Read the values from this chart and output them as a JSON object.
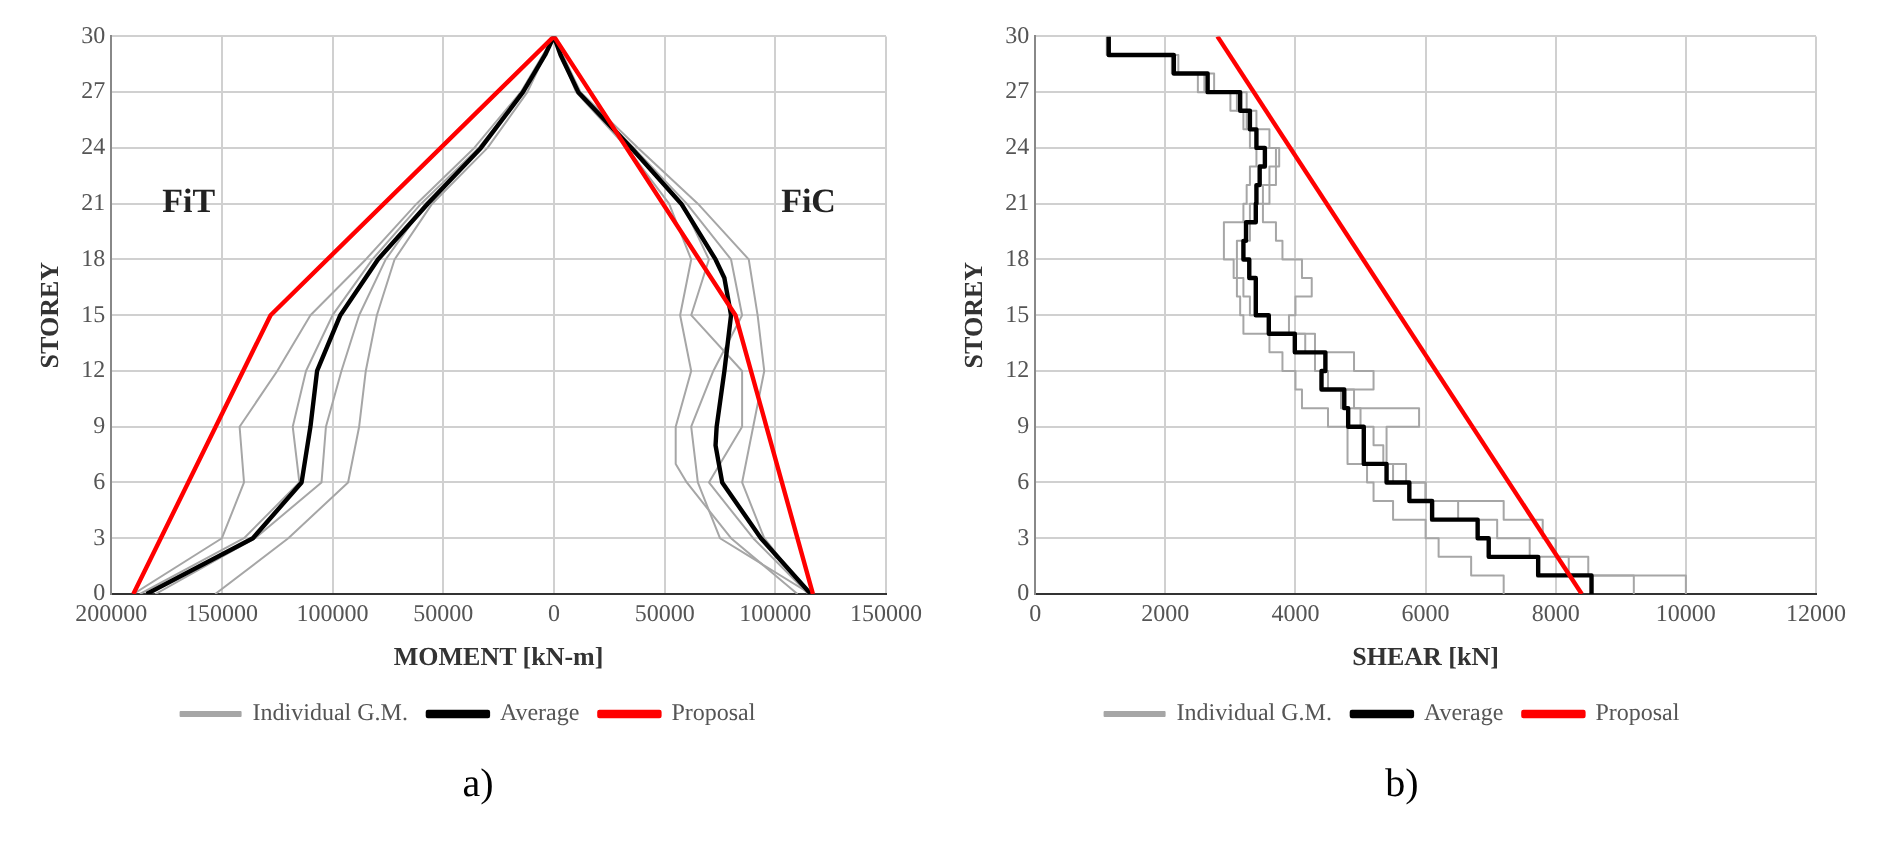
{
  "chart_data": [
    {
      "type": "line",
      "xlabel": "MOMENT [kN-m]",
      "ylabel": "STOREY",
      "xlim": [
        -200000,
        150000
      ],
      "xticks": [
        {
          "value": -200000,
          "label": "200000"
        },
        {
          "value": -150000,
          "label": "150000"
        },
        {
          "value": -100000,
          "label": "100000"
        },
        {
          "value": -50000,
          "label": "50000"
        },
        0,
        50000,
        100000,
        150000
      ],
      "ylim": [
        0,
        30
      ],
      "yticks": [
        0,
        3,
        6,
        9,
        12,
        15,
        18,
        21,
        24,
        27,
        30
      ],
      "grid": true,
      "legend": "bottom",
      "marker": "none",
      "line_style": "solid",
      "annotations": [
        "FiT",
        "FiC",
        "a)"
      ],
      "series": [
        {
          "name": "Individual G.M.",
          "color": "#a6a6a6",
          "x": [
            -190000,
            -150000,
            -140000,
            -142000,
            -125000,
            -110000,
            -85000,
            -62000,
            -36000,
            -15000,
            0,
            10000,
            33000,
            52000,
            62000,
            57000,
            62000,
            55000,
            55000,
            60000,
            80000,
            110000
          ],
          "values": [
            0,
            3,
            6,
            9,
            12,
            15,
            18,
            21,
            24,
            27,
            30,
            27,
            24,
            21,
            18,
            15,
            12,
            9,
            7,
            6,
            3,
            0
          ]
        },
        {
          "color": "#a6a6a6",
          "x": [
            -153000,
            -120000,
            -93000,
            -88000,
            -85000,
            -80000,
            -72000,
            -55000,
            -30000,
            -12000,
            0,
            12000,
            38000,
            65000,
            88000,
            92000,
            95000,
            90000,
            85000,
            95000,
            115000
          ],
          "values": [
            0,
            3,
            6,
            9,
            12,
            15,
            18,
            21,
            24,
            27,
            30,
            27,
            24,
            21,
            18,
            15,
            12,
            9,
            6,
            3,
            0
          ]
        },
        {
          "color": "#a6a6a6",
          "x": [
            -180000,
            -135000,
            -105000,
            -103000,
            -96000,
            -88000,
            -76000,
            -58000,
            -33000,
            -14000,
            0,
            11000,
            36000,
            60000,
            80000,
            85000,
            72000,
            62000,
            65000,
            75000,
            116000
          ],
          "values": [
            0,
            3,
            6,
            9,
            12,
            15,
            18,
            21,
            24,
            27,
            30,
            27,
            24,
            21,
            18,
            15,
            12,
            9,
            6,
            3,
            0
          ]
        },
        {
          "color": "#a6a6a6",
          "x": [
            -187000,
            -140000,
            -115000,
            -118000,
            -112000,
            -100000,
            -82000,
            -60000,
            -34000,
            -14000,
            0,
            11000,
            35000,
            58000,
            70000,
            62000,
            85000,
            85000,
            70000,
            90000,
            115000
          ],
          "values": [
            0,
            3,
            6,
            9,
            12,
            15,
            18,
            21,
            24,
            27,
            30,
            27,
            24,
            21,
            18,
            15,
            12,
            9,
            6,
            3,
            0
          ]
        },
        {
          "name": "Average",
          "color": "#000000",
          "x": [
            -184000,
            -136000,
            -114000,
            -110000,
            -107000,
            -96500,
            -79500,
            -57000,
            -33000,
            -14000,
            -4000,
            0,
            3000,
            11000,
            35000,
            57500,
            73000,
            77000,
            80000,
            77000,
            73500,
            73000,
            76000,
            93500,
            116000
          ],
          "values": [
            0,
            3,
            6,
            9,
            12,
            15,
            18,
            21,
            24,
            27,
            29,
            30,
            29,
            27,
            24,
            21,
            18,
            17,
            15,
            12,
            9,
            8,
            6,
            3,
            0
          ]
        },
        {
          "name": "Proposal",
          "color": "#ff0000",
          "x": [
            -190000,
            -128000,
            0,
            82000,
            117000
          ],
          "values": [
            0,
            15,
            30,
            15,
            0
          ]
        }
      ]
    },
    {
      "type": "step",
      "xlabel": "SHEAR [kN]",
      "ylabel": "STOREY",
      "xlim": [
        0,
        12000
      ],
      "xticks": [
        0,
        2000,
        4000,
        6000,
        8000,
        10000,
        12000
      ],
      "ylim": [
        0,
        30
      ],
      "yticks": [
        0,
        3,
        6,
        9,
        12,
        15,
        18,
        21,
        24,
        27,
        30
      ],
      "grid": true,
      "legend": "bottom",
      "marker": "none",
      "line_style": "solid",
      "annotations": [
        "b)"
      ],
      "series": [
        {
          "name": "Individual G.M.",
          "color": "#a6a6a6",
          "x": [
            1130,
            2100,
            2600,
            3000,
            3250,
            3400,
            3700,
            3700,
            3600,
            3500,
            3700,
            3800,
            4100,
            4250,
            4000,
            3900,
            4150,
            4900,
            5200,
            4700,
            5900,
            5400,
            5400,
            5500,
            6000,
            7200,
            7800,
            8000,
            8500,
            10000,
            10000
          ],
          "values": [
            30,
            29,
            28,
            27,
            26,
            25,
            24,
            23,
            22,
            21,
            20,
            19,
            18,
            17,
            16,
            15,
            14,
            13,
            12,
            11,
            10,
            9,
            8,
            7,
            6,
            5,
            4,
            3,
            2,
            1,
            0
          ]
        },
        {
          "color": "#a6a6a6",
          "x": [
            1150,
            2200,
            2500,
            3100,
            3200,
            3300,
            3400,
            3300,
            3250,
            3200,
            2900,
            2900,
            3050,
            3100,
            3150,
            3200,
            3600,
            3800,
            4000,
            4100,
            4500,
            4800,
            4800,
            5100,
            5200,
            5500,
            6000,
            6200,
            6700,
            7200,
            7200
          ],
          "values": [
            30,
            29,
            28,
            27,
            26,
            25,
            24,
            23,
            22,
            21,
            20,
            19,
            18,
            17,
            16,
            15,
            14,
            13,
            12,
            11,
            10,
            9,
            8,
            7,
            6,
            5,
            4,
            3,
            2,
            1,
            0
          ]
        },
        {
          "color": "#a6a6a6",
          "x": [
            1100,
            2150,
            2750,
            3250,
            3400,
            3600,
            3750,
            3600,
            3500,
            3300,
            3300,
            3100,
            3100,
            3200,
            3300,
            3600,
            4300,
            4300,
            4500,
            4900,
            5000,
            5200,
            5350,
            5700,
            6000,
            6500,
            7100,
            7600,
            8200,
            9200,
            9200
          ],
          "values": [
            30,
            29,
            28,
            27,
            26,
            25,
            24,
            23,
            22,
            21,
            20,
            19,
            18,
            17,
            16,
            15,
            14,
            13,
            12,
            11,
            10,
            9,
            8,
            7,
            6,
            5,
            4,
            3,
            2,
            1,
            0
          ]
        },
        {
          "name": "Average",
          "color": "#000000",
          "x": [
            1130,
            2130,
            2650,
            3150,
            3300,
            3400,
            3530,
            3450,
            3400,
            3390,
            3240,
            3200,
            3290,
            3390,
            3390,
            3590,
            3990,
            4460,
            4400,
            4750,
            4810,
            5050,
            5050,
            5400,
            5750,
            6100,
            6800,
            6970,
            7730,
            8550,
            8550
          ],
          "values": [
            30,
            29,
            28,
            27,
            26,
            25,
            24,
            23,
            22,
            21,
            20,
            19,
            18,
            17,
            16,
            15,
            14,
            13,
            12,
            11,
            10,
            9,
            8,
            7,
            6,
            5,
            4,
            3,
            2,
            1,
            0
          ]
        },
        {
          "name": "Proposal",
          "type": "line",
          "color": "#ff0000",
          "x": [
            2800,
            8400
          ],
          "values": [
            30,
            0
          ]
        }
      ]
    }
  ]
}
